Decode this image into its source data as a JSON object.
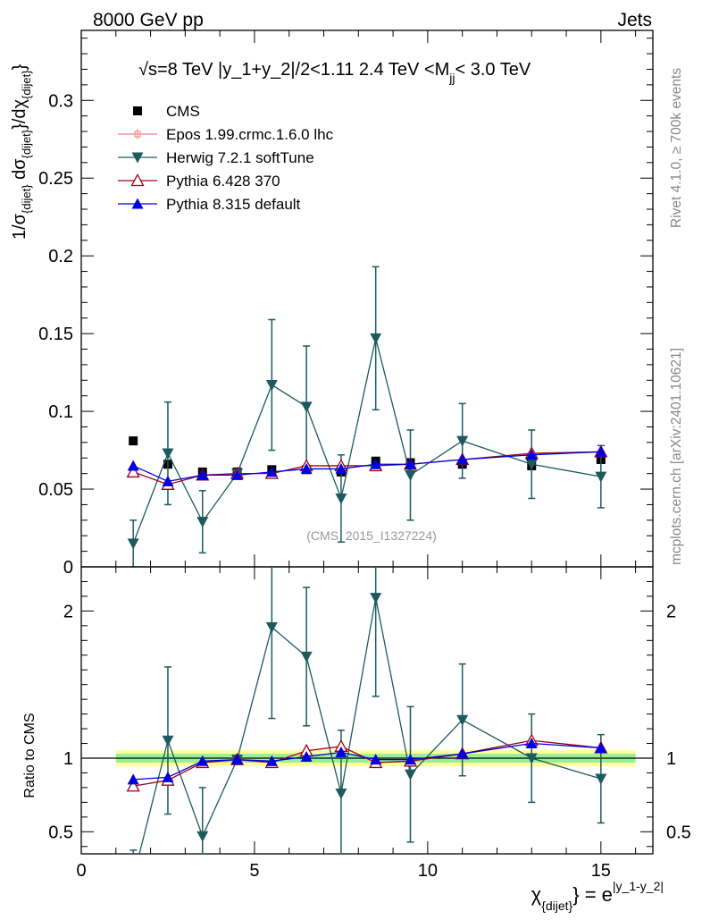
{
  "header": {
    "left": "8000 GeV pp",
    "right": "Jets"
  },
  "side_labels": {
    "rivet": "Rivet 4.1.0, ≥ 700k events",
    "mcplots": "mcplots.cern.ch [arXiv:2401.10621]"
  },
  "analysis_id": "(CMS_2015_I1327224)",
  "chart_data": {
    "type": "scatter",
    "title": "√s=8 TeV |y_1+y_2|/2<1.11 2.4 TeV <M_jj< 3.0 TeV",
    "title_parts": {
      "main": "√s=8 TeV |y_1+y_2|/2<1.11 2.4 TeV <M",
      "sub": "jj",
      "tail": "< 3.0 TeV"
    },
    "xlabel": {
      "base": "χ",
      "sub": "{dijet}",
      "rhs": "} = e",
      "sup": "|y_1-y_2|"
    },
    "ylabel": "1/σ{dijet} dσ{dijet}/dχ{dijet}",
    "ylabel_parts": {
      "a": "1/σ",
      "a_sub": "{dijet}",
      "b": " dσ",
      "b_sub": "{dijet}",
      "c": "}/dχ",
      "c_sub": "{dijet}",
      "d": "}"
    },
    "ratio_ylabel": "Ratio to CMS",
    "xlim": [
      0,
      16.5
    ],
    "ylim": [
      0,
      0.345
    ],
    "ratio_ylim": [
      0.35,
      2.3
    ],
    "x_ticks": [
      0,
      5,
      10,
      15
    ],
    "x_tick_labels": [
      "0",
      "5",
      "10",
      "15"
    ],
    "y_ticks": [
      0,
      0.05,
      0.1,
      0.15,
      0.2,
      0.25,
      0.3
    ],
    "y_tick_labels": [
      "0",
      "0.05",
      "0.1",
      "0.15",
      "0.2",
      "0.25",
      "0.3"
    ],
    "ratio_ticks": [
      0.5,
      1,
      2
    ],
    "ratio_tick_labels": [
      "0.5",
      "1",
      "2"
    ],
    "x": [
      1.5,
      2.5,
      3.5,
      4.5,
      5.5,
      6.5,
      7.5,
      8.5,
      9.5,
      11,
      13,
      15
    ],
    "bin_edges": [
      1,
      2,
      3,
      4,
      5,
      6,
      7,
      8,
      9,
      10,
      12,
      14,
      16
    ],
    "reference": {
      "name": "CMS",
      "color": "#000000",
      "values": [
        0.081,
        0.066,
        0.061,
        0.061,
        0.0625,
        0.0625,
        0.061,
        0.068,
        0.067,
        0.066,
        0.065,
        0.069
      ],
      "band_inner": 0.03,
      "band_outer": 0.055
    },
    "series": [
      {
        "name": "Epos 1.99.crmc.1.6.0 lhc",
        "color": "#f08080",
        "marker": "open-cross",
        "values": [],
        "ratio": []
      },
      {
        "name": "Herwig 7.2.1 softTune",
        "color": "#1c5a5f",
        "marker": "triangle-down",
        "values": [
          0.015,
          0.073,
          0.029,
          0.06,
          0.117,
          0.103,
          0.044,
          0.147,
          0.059,
          0.081,
          0.066,
          0.058
        ],
        "errors": [
          0.015,
          0.033,
          0.02,
          0.002,
          0.042,
          0.039,
          0.028,
          0.046,
          0.029,
          0.024,
          0.022,
          0.02
        ],
        "ratio": [
          0.185,
          1.12,
          0.47,
          0.99,
          1.89,
          1.69,
          0.76,
          2.09,
          0.89,
          1.26,
          1.0,
          0.86
        ],
        "ratio_errors": [
          0.19,
          0.5,
          0.33,
          0.03,
          0.62,
          0.47,
          0.43,
          0.67,
          0.46,
          0.38,
          0.3,
          0.3
        ]
      },
      {
        "name": "Pythia 6.428 370",
        "color": "#a00018",
        "marker": "triangle-up-open",
        "values": [
          0.061,
          0.053,
          0.059,
          0.06,
          0.06,
          0.065,
          0.065,
          0.065,
          0.066,
          0.069,
          0.073,
          0.074
        ],
        "ratio": [
          0.81,
          0.85,
          0.97,
          0.99,
          0.97,
          1.05,
          1.08,
          0.97,
          0.98,
          1.03,
          1.12,
          1.07
        ]
      },
      {
        "name": "Pythia 8.315 default",
        "color": "#0000e0",
        "marker": "triangle-up",
        "values": [
          0.065,
          0.055,
          0.059,
          0.059,
          0.061,
          0.063,
          0.063,
          0.066,
          0.066,
          0.069,
          0.072,
          0.074
        ],
        "ratio": [
          0.855,
          0.87,
          0.98,
          0.99,
          0.98,
          1.01,
          1.04,
          0.99,
          0.99,
          1.03,
          1.1,
          1.07
        ]
      }
    ]
  }
}
